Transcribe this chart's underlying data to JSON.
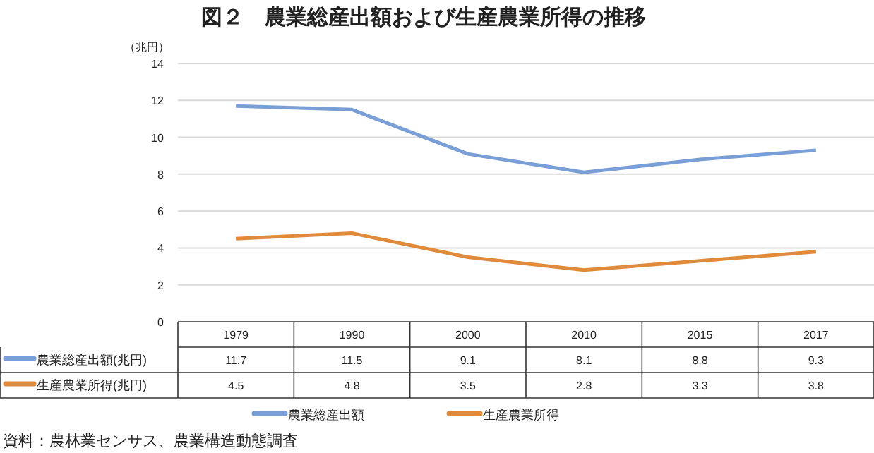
{
  "chart_data": {
    "type": "line",
    "title": "図２　農業総産出額および生産農業所得の推移",
    "ylabel": "（兆円）",
    "categories": [
      "1979",
      "1990",
      "2000",
      "2010",
      "2015",
      "2017"
    ],
    "series": [
      {
        "name": "農業総産出額",
        "color": "#7a9fd6",
        "values": [
          11.7,
          11.5,
          9.1,
          8.1,
          8.8,
          9.3
        ]
      },
      {
        "name": "生産農業所得",
        "color": "#e08a3c",
        "values": [
          4.5,
          4.8,
          3.5,
          2.8,
          3.3,
          3.8
        ]
      }
    ],
    "ylim": [
      0,
      14
    ],
    "yticks": [
      0,
      2,
      4,
      6,
      8,
      10,
      12,
      14
    ],
    "grid": "y",
    "legend": "bottom",
    "data_labels": true,
    "marker": "none",
    "line_style": "solid",
    "annotations": [
      "農業総産出額(兆円)",
      "生産農業所得(兆円)",
      "資料：農林業センサス、農業構造動態調査"
    ]
  }
}
